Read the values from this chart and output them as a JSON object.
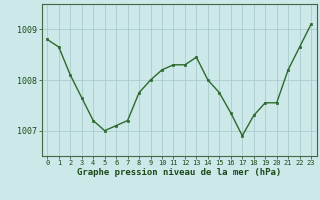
{
  "x": [
    0,
    1,
    2,
    3,
    4,
    5,
    6,
    7,
    8,
    9,
    10,
    11,
    12,
    13,
    14,
    15,
    16,
    17,
    18,
    19,
    20,
    21,
    22,
    23
  ],
  "y": [
    1008.8,
    1008.65,
    1008.1,
    1007.65,
    1007.2,
    1007.0,
    1007.1,
    1007.2,
    1007.75,
    1008.0,
    1008.2,
    1008.3,
    1008.3,
    1008.45,
    1008.0,
    1007.75,
    1007.35,
    1006.9,
    1007.3,
    1007.55,
    1007.55,
    1008.2,
    1008.65,
    1009.1
  ],
  "line_color": "#2d6a2d",
  "marker_color": "#2d6a2d",
  "bg_color": "#cce8e8",
  "grid_color": "#aacccc",
  "xlabel": "Graphe pression niveau de la mer (hPa)",
  "tick_label_color": "#1a4a1a",
  "xlabel_color": "#1a4a1a",
  "ylim": [
    1006.5,
    1009.5
  ],
  "yticks": [
    1007,
    1008,
    1009
  ],
  "xticks": [
    0,
    1,
    2,
    3,
    4,
    5,
    6,
    7,
    8,
    9,
    10,
    11,
    12,
    13,
    14,
    15,
    16,
    17,
    18,
    19,
    20,
    21,
    22,
    23
  ]
}
